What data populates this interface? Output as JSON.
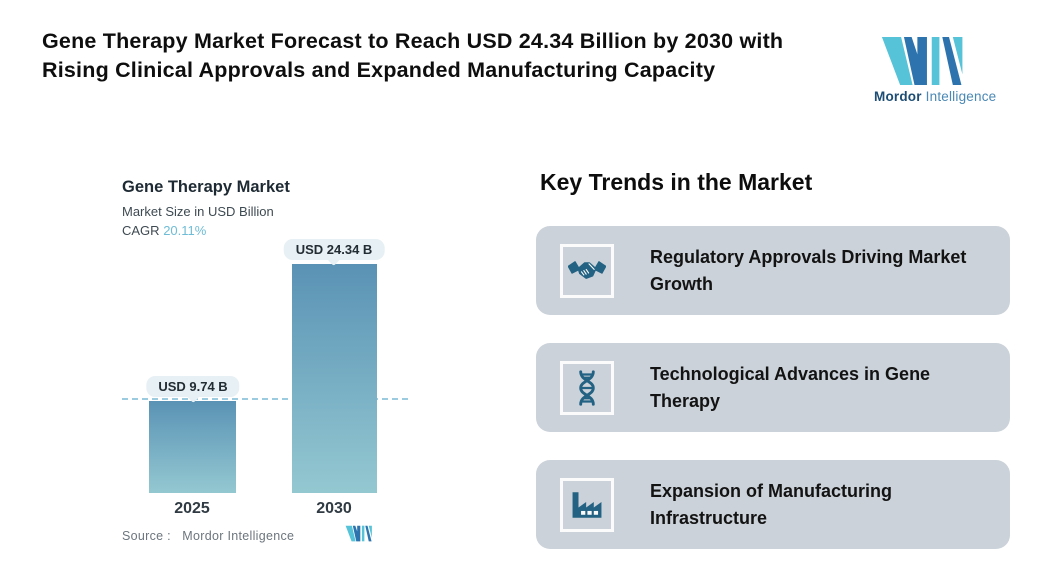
{
  "header": {
    "title": "Gene Therapy Market Forecast to Reach USD 24.34 Billion by 2030 with Rising Clinical Approvals and Expanded Manufacturing Capacity",
    "logo": {
      "brand_bold": "Mordor",
      "brand_regular": "Intelligence"
    }
  },
  "chart": {
    "title": "Gene Therapy Market",
    "subtitle": "Market Size in USD Billion",
    "cagr_label": "CAGR",
    "cagr_value": "20.11%",
    "source_label": "Source :",
    "source_value": "Mordor Intelligence"
  },
  "chart_data": {
    "type": "bar",
    "title": "Gene Therapy Market",
    "ylabel": "Market Size in USD Billion",
    "categories": [
      "2025",
      "2030"
    ],
    "values": [
      9.74,
      24.34
    ],
    "value_labels": [
      "USD 9.74 B",
      "USD 24.34 B"
    ],
    "cagr_percent": 20.11,
    "guide_line": "horizontal dashed line at the 2025 value level",
    "legend": "none",
    "grid": "off",
    "colors": {
      "bar_gradient_top": "#5a92b5",
      "bar_gradient_bottom": "#94c8d1",
      "dash_line": "#9ccadf",
      "badge_background": "#e7f0f4",
      "cagr_value_text": "#6fbcd6",
      "logo_cyan": "#56c3d8",
      "logo_blue": "#2d74ae",
      "card_background": "#cbd2d9",
      "icon_blue": "#236283"
    }
  },
  "trends": {
    "heading": "Key Trends in the Market",
    "cards": [
      {
        "icon": "handshake-icon",
        "text": "Regulatory Approvals Driving Market Growth"
      },
      {
        "icon": "dna-icon",
        "text": "Technological Advances in Gene Therapy"
      },
      {
        "icon": "factory-icon",
        "text": "Expansion of Manufacturing Infrastructure"
      }
    ]
  }
}
